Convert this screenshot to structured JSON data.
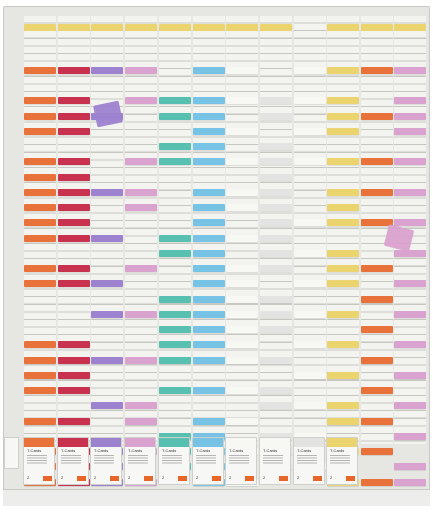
{
  "colors": {
    "orange": "#e8723a",
    "red": "#c8324e",
    "purple": "#9c82cf",
    "pink": "#d9a2cf",
    "teal": "#58c0b0",
    "blue": "#77c3e5",
    "yellow": "#ebd36e",
    "white": "#f7f7f4",
    "grey": "#e3e3e1"
  },
  "columns": [
    {
      "name": "orange",
      "tab": "yellow",
      "cards": [
        3,
        5,
        6,
        7,
        9,
        10,
        11,
        12,
        13,
        14,
        16,
        17,
        21,
        22,
        23,
        24,
        26,
        28,
        29,
        30
      ]
    },
    {
      "name": "red",
      "tab": "yellow",
      "cards": [
        3,
        5,
        6,
        7,
        9,
        10,
        11,
        12,
        13,
        14,
        16,
        17,
        21,
        22,
        23,
        24,
        26,
        28,
        29,
        30
      ]
    },
    {
      "name": "purple",
      "tab": "yellow",
      "cards": [
        3,
        6,
        11,
        14,
        17,
        19,
        22,
        25,
        28,
        29,
        30
      ]
    },
    {
      "name": "pink",
      "tab": "yellow",
      "cards": [
        3,
        5,
        9,
        11,
        12,
        16,
        19,
        22,
        25,
        26,
        28,
        30
      ]
    },
    {
      "name": "teal",
      "tab": "yellow",
      "cards": [
        5,
        6,
        8,
        9,
        14,
        15,
        18,
        19,
        20,
        21,
        22,
        24,
        27,
        28,
        29
      ]
    },
    {
      "name": "blue",
      "tab": "yellow",
      "cards": [
        3,
        5,
        6,
        7,
        8,
        9,
        11,
        12,
        13,
        14,
        15,
        16,
        17,
        18,
        19,
        20,
        21,
        22,
        24,
        26,
        27,
        28,
        29,
        30
      ]
    },
    {
      "name": "white",
      "tab": "yellow",
      "cards": [
        3,
        5,
        7,
        9,
        11,
        12,
        14,
        16,
        17,
        18,
        19,
        20,
        21,
        22,
        24,
        26,
        28,
        30
      ]
    },
    {
      "name": "grey",
      "tab": "yellow",
      "cards": [
        5,
        6,
        8,
        9,
        10,
        11,
        12,
        13,
        14,
        15,
        16,
        18,
        19,
        20,
        22,
        24,
        25,
        27,
        28,
        29
      ]
    },
    {
      "name": "white",
      "tab": null,
      "cards": [
        3,
        5,
        7,
        9,
        13,
        15,
        17,
        19,
        21,
        23,
        25,
        27,
        29
      ]
    },
    {
      "name": "yellow",
      "tab": "yellow",
      "cards": [
        3,
        5,
        6,
        7,
        9,
        11,
        12,
        13,
        15,
        16,
        17,
        19,
        21,
        23,
        25,
        26,
        28,
        30
      ]
    },
    {
      "name": "orange",
      "tab": "yellow",
      "cards": [
        3,
        6,
        9,
        11,
        13,
        16,
        18,
        20,
        22,
        24,
        26,
        28,
        30
      ]
    },
    {
      "name": "pink",
      "tab": "yellow",
      "cards": [
        3,
        5,
        6,
        7,
        9,
        11,
        13,
        15,
        17,
        19,
        21,
        23,
        25,
        27,
        29,
        30
      ]
    }
  ],
  "packs": [
    {
      "color": "orange",
      "label": "T-Cards",
      "qty": "2"
    },
    {
      "color": "red",
      "label": "T-Cards",
      "qty": "2"
    },
    {
      "color": "purple",
      "label": "T-Cards",
      "qty": "2"
    },
    {
      "color": "pink",
      "label": "T-Cards",
      "qty": "2"
    },
    {
      "color": "teal",
      "label": "T-Cards",
      "qty": "2"
    },
    {
      "color": "blue",
      "label": "T-Cards",
      "qty": "2"
    },
    {
      "color": "white",
      "label": "T-Cards",
      "qty": "2"
    },
    {
      "color": "white",
      "label": "T-Cards",
      "qty": "2"
    },
    {
      "color": "grey",
      "label": "T-Cards",
      "qty": "2"
    },
    {
      "color": "yellow",
      "label": "T-Cards",
      "qty": "2"
    }
  ],
  "loose_cards": [
    {
      "color": "purple"
    },
    {
      "color": "pink"
    }
  ]
}
